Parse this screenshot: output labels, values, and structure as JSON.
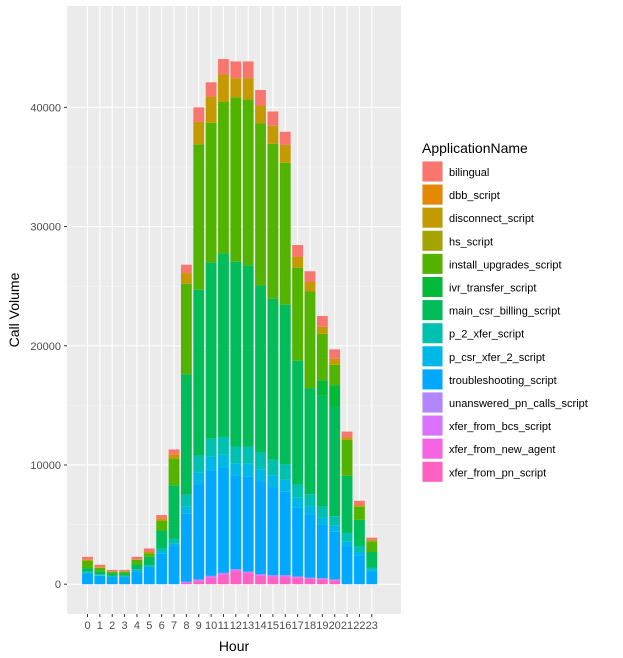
{
  "chart_data": {
    "type": "bar",
    "stacked": true,
    "xlabel": "Hour",
    "ylabel": "Call Volume",
    "ylim": [
      -2500,
      48500
    ],
    "yticks": [
      0,
      10000,
      20000,
      30000,
      40000
    ],
    "ytick_labels": [
      "0",
      "10000",
      "20000",
      "30000",
      "40000"
    ],
    "grid": true,
    "legend_position": "right",
    "legend_title": "ApplicationName",
    "categories": [
      "0",
      "1",
      "2",
      "3",
      "4",
      "5",
      "6",
      "7",
      "8",
      "9",
      "10",
      "11",
      "12",
      "13",
      "14",
      "15",
      "16",
      "17",
      "18",
      "19",
      "20",
      "21",
      "22",
      "23"
    ],
    "series": [
      {
        "name": "xfer_from_pn_script",
        "color": "#FF61C3",
        "values": [
          0,
          0,
          0,
          0,
          0,
          0,
          0,
          0,
          100,
          250,
          550,
          800,
          1100,
          900,
          700,
          600,
          600,
          550,
          450,
          400,
          300,
          0,
          0,
          0
        ]
      },
      {
        "name": "xfer_from_new_agent",
        "color": "#F564E3",
        "values": [
          0,
          0,
          0,
          0,
          0,
          0,
          0,
          0,
          0,
          0,
          0,
          0,
          0,
          0,
          0,
          0,
          0,
          0,
          0,
          0,
          0,
          0,
          0,
          0
        ]
      },
      {
        "name": "xfer_from_bcs_script",
        "color": "#DB72FB",
        "values": [
          0,
          0,
          0,
          0,
          0,
          0,
          0,
          0,
          100,
          150,
          150,
          150,
          150,
          150,
          150,
          150,
          150,
          100,
          100,
          100,
          100,
          0,
          0,
          0
        ]
      },
      {
        "name": "unanswered_pn_calls_script",
        "color": "#B385FF",
        "values": [
          0,
          0,
          0,
          0,
          0,
          0,
          0,
          0,
          0,
          0,
          0,
          0,
          0,
          0,
          0,
          0,
          0,
          0,
          0,
          0,
          0,
          0,
          0,
          0
        ]
      },
      {
        "name": "troubleshooting_script",
        "color": "#00A9FF",
        "values": [
          900,
          700,
          600,
          600,
          1100,
          1400,
          2600,
          3200,
          5700,
          8000,
          8800,
          8800,
          7900,
          8000,
          7800,
          7400,
          7000,
          5800,
          5300,
          4500,
          4000,
          3200,
          2400,
          1100
        ]
      },
      {
        "name": "p_csr_xfer_2_script",
        "color": "#00B8E7",
        "values": [
          50,
          50,
          40,
          40,
          50,
          50,
          100,
          200,
          600,
          1000,
          1200,
          1100,
          1000,
          1100,
          1000,
          1000,
          1000,
          800,
          700,
          600,
          500,
          400,
          300,
          100
        ]
      },
      {
        "name": "p_2_xfer_script",
        "color": "#00C0AF",
        "values": [
          100,
          80,
          60,
          60,
          100,
          150,
          300,
          400,
          1000,
          1400,
          1500,
          1500,
          1400,
          1400,
          1400,
          1300,
          1300,
          1100,
          1000,
          900,
          800,
          700,
          500,
          200
        ]
      },
      {
        "name": "main_csr_billing_script",
        "color": "#00BC59",
        "values": [
          300,
          250,
          200,
          200,
          400,
          700,
          1500,
          4500,
          10100,
          13900,
          14800,
          15400,
          15500,
          15200,
          14000,
          13500,
          13400,
          10400,
          8900,
          9300,
          9200,
          4800,
          2200,
          1300
        ]
      },
      {
        "name": "ivr_transfer_script",
        "color": "#00BA38",
        "values": [
          0,
          0,
          0,
          0,
          0,
          0,
          0,
          0,
          0,
          0,
          0,
          0,
          0,
          0,
          0,
          0,
          0,
          0,
          0,
          1300,
          1800,
          0,
          0,
          0
        ]
      },
      {
        "name": "install_upgrades_script",
        "color": "#53B400",
        "values": [
          600,
          300,
          150,
          150,
          400,
          300,
          800,
          2200,
          7600,
          12200,
          11700,
          12700,
          13800,
          13900,
          13600,
          13000,
          11900,
          7800,
          8100,
          3900,
          1700,
          3000,
          1100,
          900
        ]
      },
      {
        "name": "hs_script",
        "color": "#A5A300",
        "values": [
          0,
          0,
          0,
          0,
          0,
          0,
          0,
          0,
          0,
          0,
          0,
          0,
          0,
          0,
          0,
          0,
          0,
          0,
          0,
          0,
          0,
          0,
          0,
          0
        ]
      },
      {
        "name": "disconnect_script",
        "color": "#C49A00",
        "values": [
          100,
          50,
          40,
          40,
          50,
          100,
          200,
          400,
          900,
          1900,
          2200,
          2300,
          1600,
          1800,
          1500,
          1500,
          1500,
          900,
          800,
          600,
          500,
          200,
          100,
          100
        ]
      },
      {
        "name": "dbb_script",
        "color": "#E38900",
        "values": [
          0,
          0,
          0,
          0,
          0,
          0,
          0,
          0,
          0,
          0,
          0,
          0,
          0,
          0,
          0,
          0,
          0,
          0,
          0,
          0,
          0,
          0,
          0,
          0
        ]
      },
      {
        "name": "bilingual",
        "color": "#F8766D",
        "values": [
          250,
          200,
          110,
          110,
          200,
          300,
          300,
          400,
          700,
          1200,
          1200,
          1300,
          1400,
          1400,
          1300,
          1200,
          1100,
          1000,
          900,
          900,
          800,
          500,
          400,
          200
        ]
      }
    ]
  },
  "legend": {
    "title": "ApplicationName",
    "items": [
      {
        "label": "bilingual",
        "color": "#F8766D"
      },
      {
        "label": "dbb_script",
        "color": "#E38900"
      },
      {
        "label": "disconnect_script",
        "color": "#C49A00"
      },
      {
        "label": "hs_script",
        "color": "#A5A300"
      },
      {
        "label": "install_upgrades_script",
        "color": "#53B400"
      },
      {
        "label": "ivr_transfer_script",
        "color": "#00BA38"
      },
      {
        "label": "main_csr_billing_script",
        "color": "#00BC59"
      },
      {
        "label": "p_2_xfer_script",
        "color": "#00C0AF"
      },
      {
        "label": "p_csr_xfer_2_script",
        "color": "#00B8E7"
      },
      {
        "label": "troubleshooting_script",
        "color": "#00A9FF"
      },
      {
        "label": "unanswered_pn_calls_script",
        "color": "#B385FF"
      },
      {
        "label": "xfer_from_bcs_script",
        "color": "#DB72FB"
      },
      {
        "label": "xfer_from_new_agent",
        "color": "#F564E3"
      },
      {
        "label": "xfer_from_pn_script",
        "color": "#FF61C3"
      }
    ]
  }
}
